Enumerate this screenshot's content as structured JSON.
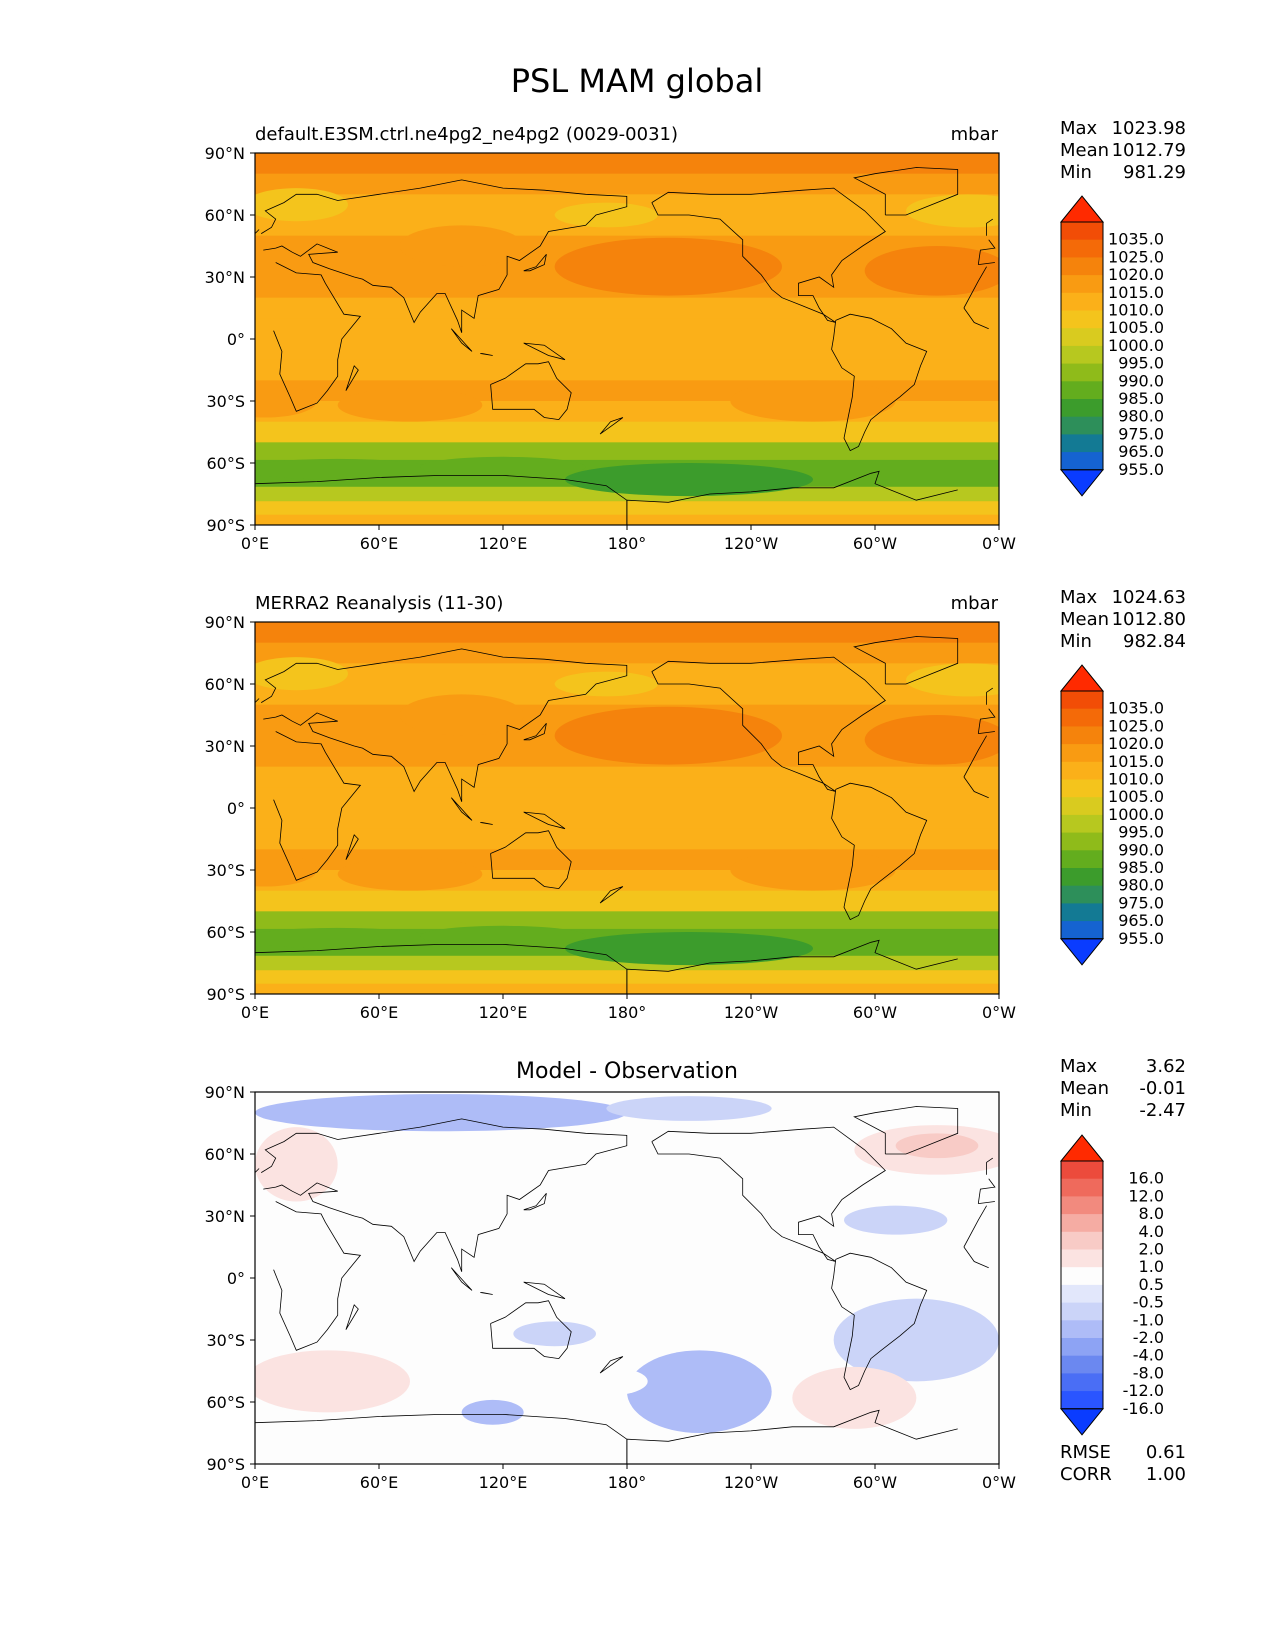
{
  "figure": {
    "title": "PSL MAM global"
  },
  "palette": {
    "psl_colors": [
      "#0a3cff",
      "#1563d1",
      "#137a94",
      "#2d8f5a",
      "#3c9c2c",
      "#63ad1e",
      "#8fbb1a",
      "#b7c81f",
      "#d9cb1f",
      "#f4c41c",
      "#fbb019",
      "#f99b12",
      "#f5830c",
      "#f46a08",
      "#f24d06",
      "#ff2a00"
    ],
    "diff_colors": [
      "#0a3cff",
      "#2a55ff",
      "#4a6ef5",
      "#6b88f0",
      "#8da3f4",
      "#aebcf7",
      "#cbd4f8",
      "#e2e7fb",
      "#fdfdfd",
      "#fbe3e1",
      "#f8cbc6",
      "#f5aca3",
      "#f28a7e",
      "#ef6a5c",
      "#ec4b3c",
      "#ff2a00"
    ],
    "land_outline": "#000000"
  },
  "chart_data": [
    {
      "type": "heatmap",
      "title": "default.E3SM.ctrl.ne4pg2_ne4pg2 (0029-0031)",
      "units": "mbar",
      "stats": {
        "max_label": "Max",
        "max": "1023.98",
        "mean_label": "Mean",
        "mean": "1012.79",
        "min_label": "Min",
        "min": "981.29"
      },
      "x_ticks": [
        "0°E",
        "60°E",
        "120°E",
        "180°",
        "120°W",
        "60°W",
        "0°W"
      ],
      "y_ticks": [
        "90°N",
        "60°N",
        "30°N",
        "0°",
        "30°S",
        "60°S",
        "90°S"
      ],
      "xlim": [
        0,
        360
      ],
      "ylim": [
        -90,
        90
      ],
      "colorbar_levels": [
        "1035.0",
        "1025.0",
        "1020.0",
        "1015.0",
        "1010.0",
        "1005.0",
        "1000.0",
        "995.0",
        "990.0",
        "985.0",
        "980.0",
        "975.0",
        "965.0",
        "955.0"
      ],
      "zonal_mean_by_latitude": {
        "lat": [
          85,
          75,
          65,
          55,
          45,
          35,
          25,
          15,
          5,
          -5,
          -15,
          -25,
          -35,
          -45,
          -55,
          -62,
          -68,
          -75,
          -82,
          -88
        ],
        "value": [
          1020,
          1016,
          1012,
          1013,
          1016,
          1017,
          1015,
          1012,
          1010,
          1011,
          1014,
          1016,
          1012,
          1005,
          992,
          986,
          988,
          998,
          1006,
          1010
        ]
      }
    },
    {
      "type": "heatmap",
      "title": "MERRA2 Reanalysis (11-30)",
      "units": "mbar",
      "stats": {
        "max_label": "Max",
        "max": "1024.63",
        "mean_label": "Mean",
        "mean": "1012.80",
        "min_label": "Min",
        "min": "982.84"
      },
      "x_ticks": [
        "0°E",
        "60°E",
        "120°E",
        "180°",
        "120°W",
        "60°W",
        "0°W"
      ],
      "y_ticks": [
        "90°N",
        "60°N",
        "30°N",
        "0°",
        "30°S",
        "60°S",
        "90°S"
      ],
      "xlim": [
        0,
        360
      ],
      "ylim": [
        -90,
        90
      ],
      "colorbar_levels": [
        "1035.0",
        "1025.0",
        "1020.0",
        "1015.0",
        "1010.0",
        "1005.0",
        "1000.0",
        "995.0",
        "990.0",
        "985.0",
        "980.0",
        "975.0",
        "965.0",
        "955.0"
      ],
      "zonal_mean_by_latitude": {
        "lat": [
          85,
          75,
          65,
          55,
          45,
          35,
          25,
          15,
          5,
          -5,
          -15,
          -25,
          -35,
          -45,
          -55,
          -62,
          -68,
          -75,
          -82,
          -88
        ],
        "value": [
          1021,
          1017,
          1012,
          1013,
          1016,
          1017,
          1015,
          1012,
          1010,
          1011,
          1014,
          1016,
          1012,
          1005,
          991,
          985,
          987,
          997,
          1006,
          1010
        ]
      }
    },
    {
      "type": "heatmap",
      "title": "Model - Observation",
      "units": "",
      "stats": {
        "max_label": "Max",
        "max": "3.62",
        "mean_label": "Mean",
        "mean": "-0.01",
        "min_label": "Min",
        "min": "-2.47"
      },
      "x_ticks": [
        "0°E",
        "60°E",
        "120°E",
        "180°",
        "120°W",
        "60°W",
        "0°W"
      ],
      "y_ticks": [
        "90°N",
        "60°N",
        "30°N",
        "0°",
        "30°S",
        "60°S",
        "90°S"
      ],
      "xlim": [
        0,
        360
      ],
      "ylim": [
        -90,
        90
      ],
      "colorbar_levels": [
        "16.0",
        "12.0",
        "8.0",
        "4.0",
        "2.0",
        "1.0",
        "0.5",
        "-0.5",
        "-1.0",
        "-2.0",
        "-4.0",
        "-8.0",
        "-12.0",
        "-16.0"
      ],
      "extra_stats": {
        "rmse_label": "RMSE",
        "rmse": "0.61",
        "corr_label": "CORR",
        "corr": "1.00"
      }
    }
  ]
}
